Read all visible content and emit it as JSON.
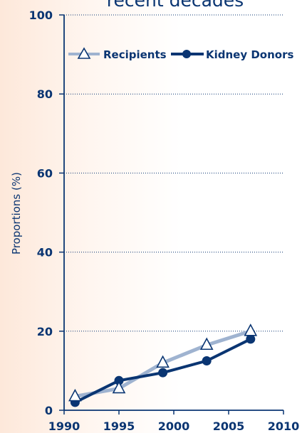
{
  "chart_data": {
    "type": "line",
    "title": "recent decades",
    "xlabel": "",
    "ylabel": "Proportions (%)",
    "xlim": [
      1990,
      2010
    ],
    "ylim": [
      0,
      100
    ],
    "x_ticks": [
      1990,
      1995,
      2000,
      2005,
      2010
    ],
    "y_ticks": [
      0,
      20,
      40,
      60,
      80,
      100
    ],
    "grid": "horizontal dotted",
    "legend_position": "top",
    "series": [
      {
        "name": "Recipients",
        "color": "#9fb3d0",
        "marker": "open-triangle",
        "x": [
          1991,
          1995,
          1999,
          2003,
          2007
        ],
        "y": [
          3.5,
          5.5,
          12,
          16.5,
          20
        ]
      },
      {
        "name": "Kidney Donors",
        "color": "#0a3572",
        "marker": "filled-circle",
        "x": [
          1991,
          1995,
          1999,
          2003,
          2007
        ],
        "y": [
          2,
          7.5,
          9.5,
          12.5,
          18
        ]
      }
    ]
  }
}
